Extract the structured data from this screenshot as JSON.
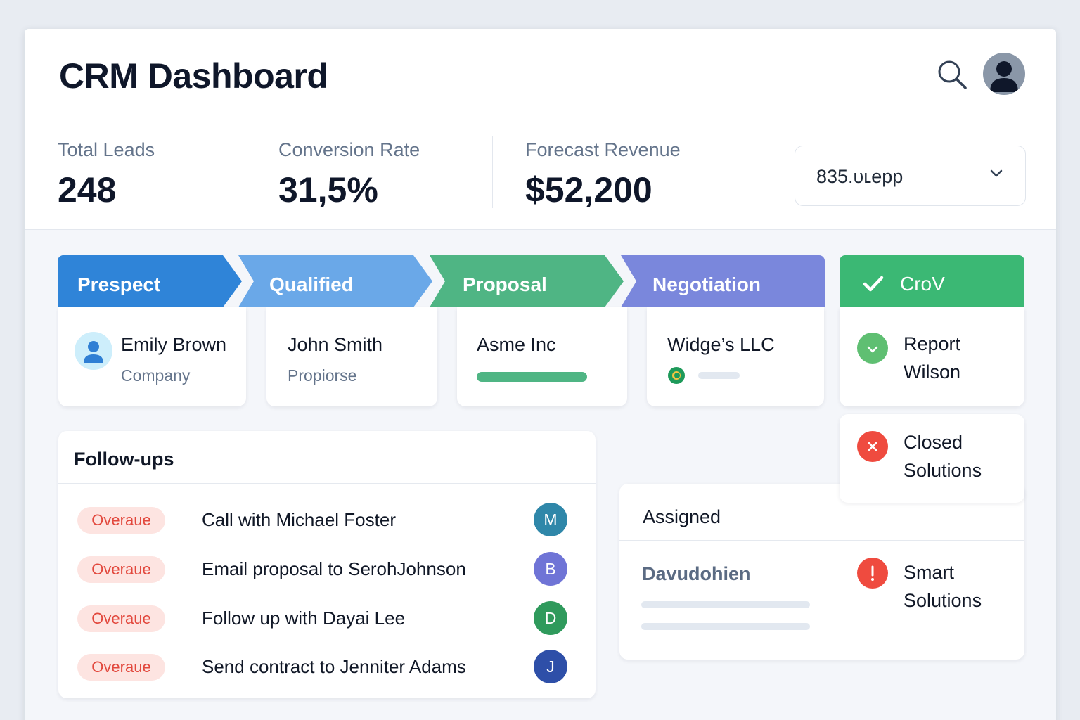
{
  "header": {
    "title": "CRM Dashboard",
    "search_icon": "search-icon",
    "avatar_icon": "user-avatar-icon"
  },
  "stats": [
    {
      "label": "Total Leads",
      "value": "248"
    },
    {
      "label": "Conversion Rate",
      "value": "31,5%"
    },
    {
      "label": "Forecast Revenue",
      "value": "$52,200"
    }
  ],
  "dropdown": {
    "value": "835.ᴜʟepp",
    "icon": "chevron-down-icon"
  },
  "pipeline": {
    "stages": [
      {
        "label": "Prespect",
        "color": "#2f84d8"
      },
      {
        "label": "Qualified",
        "color": "#6aa8e8"
      },
      {
        "label": "Proposal",
        "color": "#4fb584"
      },
      {
        "label": "Negotiation",
        "color": "#7a87dc"
      },
      {
        "label": "CroV",
        "color": "#3bb874",
        "icon": "check-icon"
      }
    ],
    "cards": [
      {
        "name": "Emily Brown",
        "sub": "Company"
      },
      {
        "name": "John Smith",
        "sub": "Propiorse"
      },
      {
        "name": "Asme Inc",
        "progress": 1.0
      },
      {
        "name": "Widge’s LLC",
        "progress": 0.0
      }
    ]
  },
  "side_cards": [
    {
      "line1": "Report",
      "line2": "Wilson",
      "status_color": "#5fbf72",
      "icon": "chevron-down-icon"
    },
    {
      "line1": "Closed",
      "line2": "Solutions",
      "status_color": "#ef4b3f",
      "icon": "x-icon"
    },
    {
      "line1": "Smart",
      "line2": "Solutions",
      "status_color": "#ef4b3f",
      "icon": "alert-icon"
    }
  ],
  "followups": {
    "title": "Follow-ups",
    "items": [
      {
        "badge": "Overaue",
        "text": "Call with Michael Foster",
        "initial": "M",
        "color": "#2f87a9"
      },
      {
        "badge": "Overaue",
        "text": "Email proposal to SerohJohnson",
        "initial": "B",
        "color": "#6f74d6"
      },
      {
        "badge": "Overaue",
        "text": "Follow up with Dayai Lee",
        "initial": "D",
        "color": "#2f9a5c"
      },
      {
        "badge": "Overaue",
        "text": "Send contract to Jenniter Adams",
        "initial": "J",
        "color": "#2e4fa8"
      }
    ]
  },
  "assigned": {
    "title": "Assigned",
    "name": "Davudohien"
  }
}
